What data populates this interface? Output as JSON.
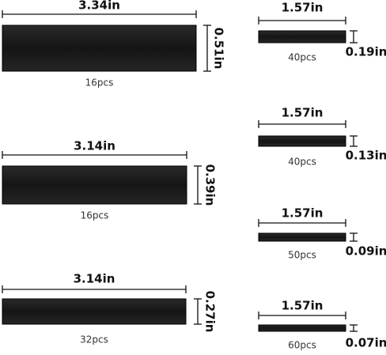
{
  "items": [
    {
      "width": "3.34in",
      "height": "0.51in",
      "count": "16pcs"
    },
    {
      "width": "3.14in",
      "height": "0.39in",
      "count": "16pcs"
    },
    {
      "width": "3.14in",
      "height": "0.27in",
      "count": "32pcs"
    },
    {
      "width": "1.57in",
      "height": "0.19in",
      "count": "40pcs"
    },
    {
      "width": "1.57in",
      "height": "0.13in",
      "count": "40pcs"
    },
    {
      "width": "1.57in",
      "height": "0.09in",
      "count": "50pcs"
    },
    {
      "width": "1.57in",
      "height": "0.07in",
      "count": "60pcs"
    }
  ]
}
